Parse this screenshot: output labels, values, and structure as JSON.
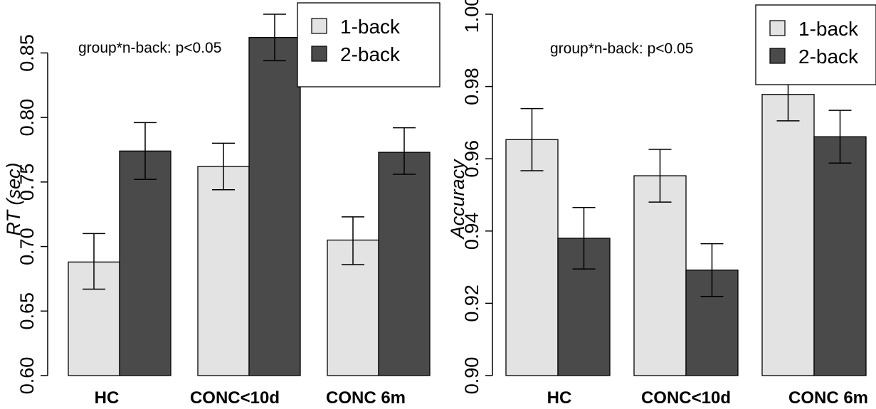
{
  "chart_data": [
    {
      "type": "bar",
      "categories": [
        "HC",
        "CONC<10d",
        "CONC 6m"
      ],
      "series": [
        {
          "name": "1-back",
          "values": [
            0.688,
            0.762,
            0.705
          ],
          "err_low": [
            0.667,
            0.744,
            0.686
          ],
          "err_high": [
            0.71,
            0.78,
            0.723
          ]
        },
        {
          "name": "2-back",
          "values": [
            0.774,
            0.862,
            0.773
          ],
          "err_low": [
            0.752,
            0.844,
            0.756
          ],
          "err_high": [
            0.796,
            0.88,
            0.792
          ]
        }
      ],
      "ylabel": "RT (sec)",
      "xlabel": "",
      "ylim": [
        0.6,
        0.88
      ],
      "yticks": [
        "0.60",
        "0.65",
        "0.70",
        "0.75",
        "0.80",
        "0.85"
      ],
      "annotation": "group*n-back: p<0.05",
      "legend_position": "top-right",
      "grid": false
    },
    {
      "type": "bar",
      "categories": [
        "HC",
        "CONC<10d",
        "CONC 6m"
      ],
      "series": [
        {
          "name": "1-back",
          "values": [
            0.9653,
            0.9553,
            0.9778
          ],
          "err_low": [
            0.9567,
            0.948,
            0.9705
          ],
          "err_high": [
            0.9739,
            0.9626,
            0.9852
          ]
        },
        {
          "name": "2-back",
          "values": [
            0.938,
            0.9292,
            0.9661
          ],
          "err_low": [
            0.9295,
            0.9219,
            0.9588
          ],
          "err_high": [
            0.9465,
            0.9365,
            0.9734
          ]
        }
      ],
      "ylabel": "Accuracy",
      "xlabel": "",
      "ylim": [
        0.9,
        1.0
      ],
      "yticks": [
        "0.90",
        "0.92",
        "0.94",
        "0.96",
        "0.98",
        "1.00"
      ],
      "annotation": "group*n-back: p<0.05",
      "legend_position": "top-right",
      "grid": false
    }
  ],
  "colors": {
    "series_1": "#e3e3e3",
    "series_2": "#4a4a4a",
    "stroke": "#000000"
  }
}
